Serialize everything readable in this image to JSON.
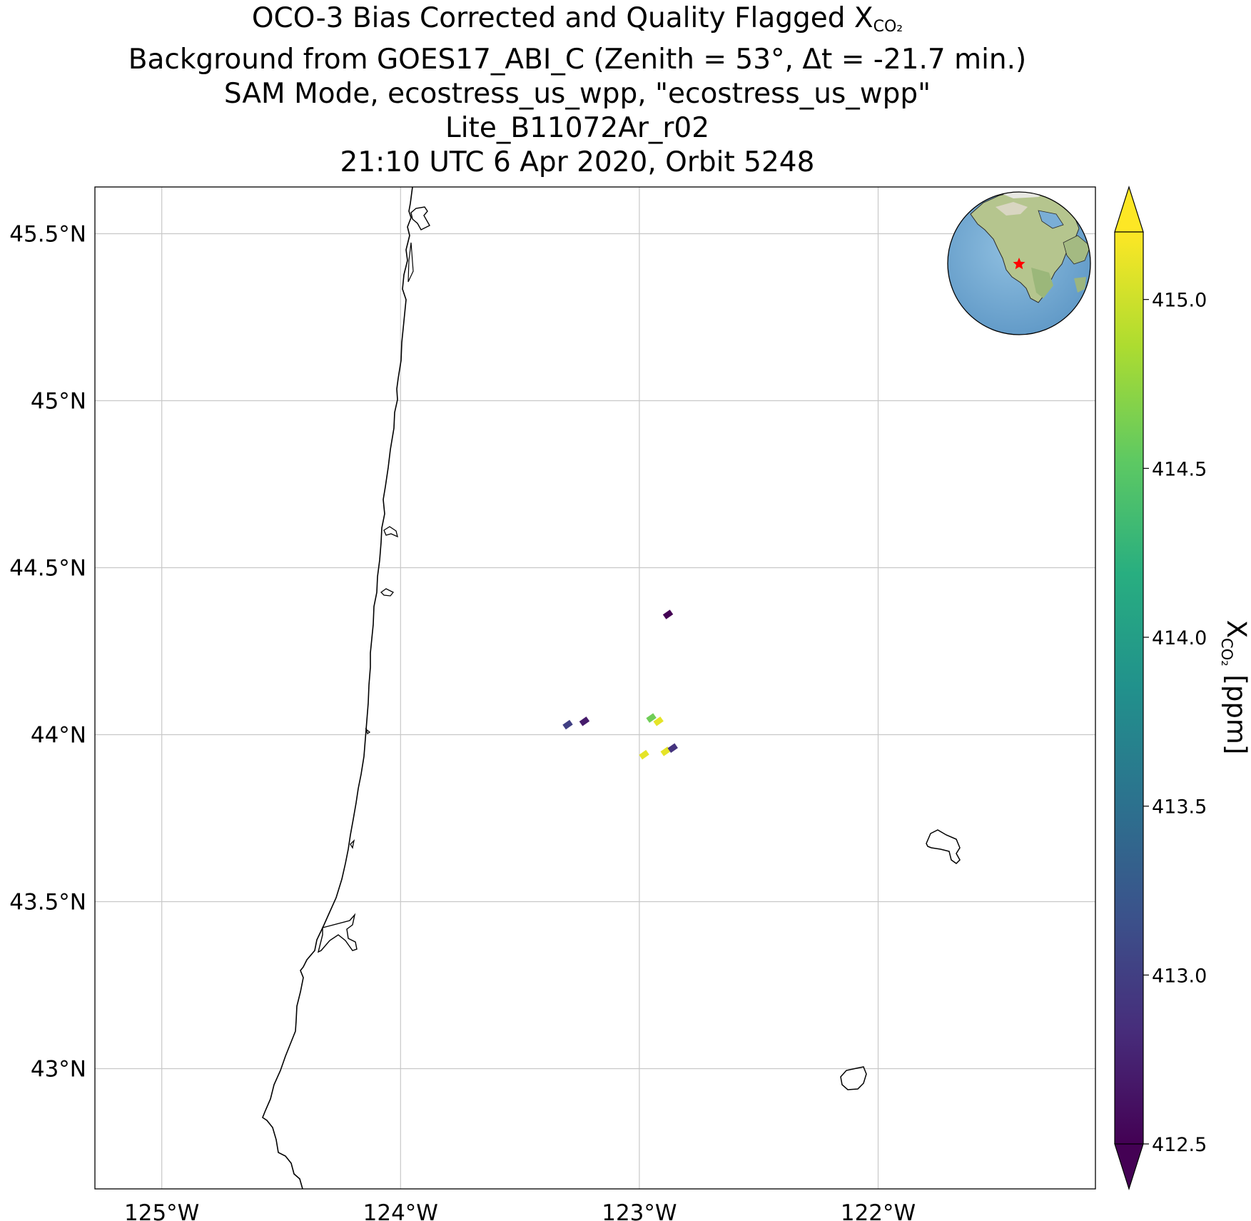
{
  "title": {
    "line1_prefix": "OCO-3 Bias Corrected and Quality Flagged X",
    "line1_sub": "CO₂",
    "line2": "Background from GOES17_ABI_C (Zenith = 53°, Δt = -21.7 min.)",
    "line3": "SAM Mode, ecostress_us_wpp, \"ecostress_us_wpp\"",
    "line4": "Lite_B11072Ar_r02",
    "line5": "21:10 UTC 6 Apr 2020, Orbit 5248"
  },
  "axes": {
    "lon_range": [
      -125.28,
      -121.09
    ],
    "lat_range": [
      42.64,
      45.64
    ],
    "lon_ticks": [
      -125,
      -124,
      -123,
      -122
    ],
    "lon_tick_labels": [
      "125°W",
      "124°W",
      "123°W",
      "122°W"
    ],
    "lat_ticks": [
      45.5,
      45,
      44.5,
      44,
      43.5,
      43
    ],
    "lat_tick_labels": [
      "45.5°N",
      "45°N",
      "44.5°N",
      "44°N",
      "43.5°N",
      "43°N"
    ],
    "grid": true
  },
  "colorbar": {
    "label_prefix": "X",
    "label_sub": "CO₂",
    "label_suffix": " [ppm]",
    "range": [
      412.5,
      415.2
    ],
    "ticks": [
      412.5,
      413.0,
      413.5,
      414.0,
      414.5,
      415.0
    ],
    "tick_labels": [
      "412.5",
      "413.0",
      "413.5",
      "414.0",
      "414.5",
      "415.0"
    ],
    "colormap": "viridis",
    "extend": "both"
  },
  "chart_data": {
    "type": "scatter",
    "series": [
      {
        "lon": [
          -122.88,
          -123.3,
          -123.23,
          -122.95,
          -122.92,
          -122.98,
          -122.89,
          -122.86
        ],
        "lat": [
          44.36,
          44.03,
          44.04,
          44.05,
          44.04,
          43.94,
          43.95,
          43.96
        ],
        "xco2": [
          412.5,
          413.0,
          412.7,
          414.6,
          415.1,
          415.1,
          415.1,
          412.9
        ]
      }
    ]
  },
  "inset": {
    "marker_color": "#ff0000",
    "marker": "star-icon"
  }
}
